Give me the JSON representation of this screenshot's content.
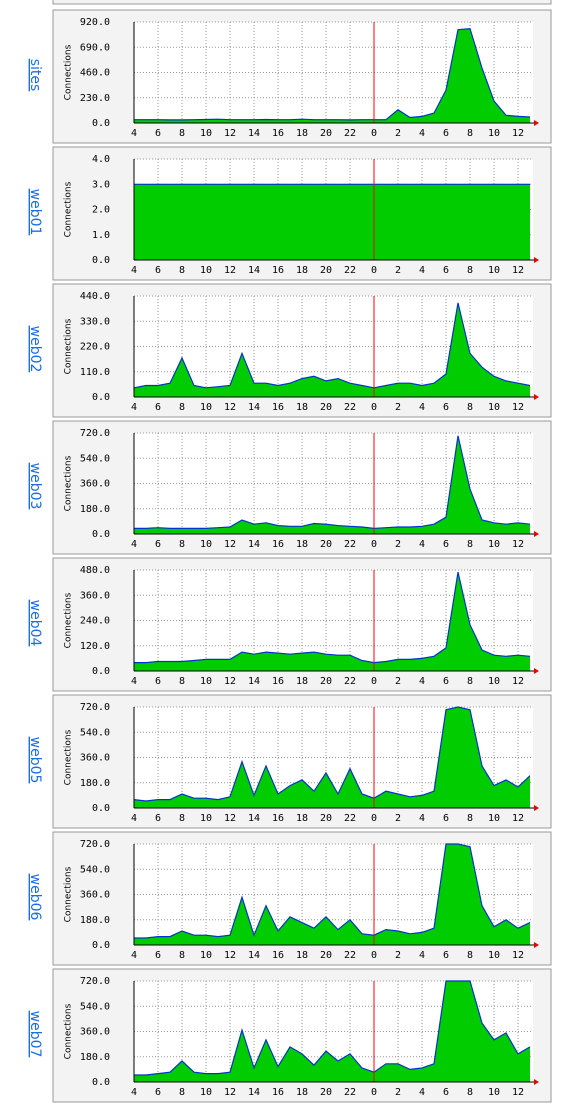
{
  "chart_data": [
    {
      "type": "area",
      "title": "sites",
      "ylabel": "Connections",
      "color": "#00cc00",
      "line_color": "#0033cc",
      "marker_x": 24,
      "marker_color": "#ff0000",
      "grid": true,
      "x": [
        4,
        5,
        6,
        7,
        8,
        9,
        10,
        11,
        12,
        13,
        14,
        15,
        16,
        17,
        18,
        19,
        20,
        21,
        22,
        23,
        24,
        25,
        26,
        27,
        28,
        29,
        30,
        31,
        32,
        33,
        34,
        35,
        36,
        37
      ],
      "values": [
        30,
        30,
        30,
        28,
        28,
        30,
        32,
        35,
        30,
        30,
        30,
        32,
        30,
        30,
        35,
        30,
        30,
        30,
        28,
        30,
        30,
        30,
        120,
        50,
        60,
        90,
        300,
        850,
        860,
        500,
        200,
        70,
        60,
        55
      ],
      "xlim": [
        4,
        37.25
      ],
      "xticks": [
        4,
        6,
        8,
        10,
        12,
        14,
        16,
        18,
        20,
        22,
        {
          "value": 24,
          "label": "0"
        },
        {
          "value": 26,
          "label": "2"
        },
        {
          "value": 28,
          "label": "4"
        },
        {
          "value": 30,
          "label": "6"
        },
        {
          "value": 32,
          "label": "8"
        },
        {
          "value": 34,
          "label": "10"
        },
        {
          "value": 36,
          "label": "12"
        }
      ],
      "ylim": [
        0,
        920
      ],
      "yticks": [
        {
          "value": 0,
          "label": "0.0"
        },
        {
          "value": 230,
          "label": "230.0"
        },
        {
          "value": 460,
          "label": "460.0"
        },
        {
          "value": 690,
          "label": "690.0"
        },
        {
          "value": 920,
          "label": "920.0"
        }
      ]
    },
    {
      "type": "area",
      "title": "web01",
      "ylabel": "Connections",
      "color": "#00cc00",
      "line_color": "#0033cc",
      "marker_x": 24,
      "marker_color": "#ff0000",
      "grid": true,
      "x": [
        4,
        5,
        6,
        7,
        8,
        9,
        10,
        11,
        12,
        13,
        14,
        15,
        16,
        17,
        18,
        19,
        20,
        21,
        22,
        23,
        24,
        25,
        26,
        27,
        28,
        29,
        30,
        31,
        32,
        33,
        34,
        35,
        36,
        37
      ],
      "values": [
        3,
        3,
        3,
        3,
        3,
        3,
        3,
        3,
        3,
        3,
        3,
        3,
        3,
        3,
        3,
        3,
        3,
        3,
        3,
        3,
        3,
        3,
        3,
        3,
        3,
        3,
        3,
        3,
        3,
        3,
        3,
        3,
        3,
        3
      ],
      "xlim": [
        4,
        37.25
      ],
      "xticks": [
        4,
        6,
        8,
        10,
        12,
        14,
        16,
        18,
        20,
        22,
        {
          "value": 24,
          "label": "0"
        },
        {
          "value": 26,
          "label": "2"
        },
        {
          "value": 28,
          "label": "4"
        },
        {
          "value": 30,
          "label": "6"
        },
        {
          "value": 32,
          "label": "8"
        },
        {
          "value": 34,
          "label": "10"
        },
        {
          "value": 36,
          "label": "12"
        }
      ],
      "ylim": [
        0,
        4
      ],
      "yticks": [
        {
          "value": 0,
          "label": "0.0"
        },
        {
          "value": 1,
          "label": "1.0"
        },
        {
          "value": 2,
          "label": "2.0"
        },
        {
          "value": 3,
          "label": "3.0"
        },
        {
          "value": 4,
          "label": "4.0"
        }
      ]
    },
    {
      "type": "area",
      "title": "web02",
      "ylabel": "Connections",
      "color": "#00cc00",
      "line_color": "#0033cc",
      "marker_x": 24,
      "marker_color": "#ff0000",
      "grid": true,
      "x": [
        4,
        5,
        6,
        7,
        8,
        9,
        10,
        11,
        12,
        13,
        14,
        15,
        16,
        17,
        18,
        19,
        20,
        21,
        22,
        23,
        24,
        25,
        26,
        27,
        28,
        29,
        30,
        31,
        32,
        33,
        34,
        35,
        36,
        37
      ],
      "values": [
        40,
        50,
        50,
        60,
        170,
        50,
        40,
        45,
        50,
        190,
        60,
        60,
        50,
        60,
        80,
        90,
        70,
        80,
        60,
        50,
        40,
        50,
        60,
        60,
        50,
        60,
        100,
        410,
        190,
        130,
        90,
        70,
        60,
        50
      ],
      "xlim": [
        4,
        37.25
      ],
      "xticks": [
        4,
        6,
        8,
        10,
        12,
        14,
        16,
        18,
        20,
        22,
        {
          "value": 24,
          "label": "0"
        },
        {
          "value": 26,
          "label": "2"
        },
        {
          "value": 28,
          "label": "4"
        },
        {
          "value": 30,
          "label": "6"
        },
        {
          "value": 32,
          "label": "8"
        },
        {
          "value": 34,
          "label": "10"
        },
        {
          "value": 36,
          "label": "12"
        }
      ],
      "ylim": [
        0,
        440
      ],
      "yticks": [
        {
          "value": 0,
          "label": "0.0"
        },
        {
          "value": 110,
          "label": "110.0"
        },
        {
          "value": 220,
          "label": "220.0"
        },
        {
          "value": 330,
          "label": "330.0"
        },
        {
          "value": 440,
          "label": "440.0"
        }
      ]
    },
    {
      "type": "area",
      "title": "web03",
      "ylabel": "Connections",
      "color": "#00cc00",
      "line_color": "#0033cc",
      "marker_x": 24,
      "marker_color": "#ff0000",
      "grid": true,
      "x": [
        4,
        5,
        6,
        7,
        8,
        9,
        10,
        11,
        12,
        13,
        14,
        15,
        16,
        17,
        18,
        19,
        20,
        21,
        22,
        23,
        24,
        25,
        26,
        27,
        28,
        29,
        30,
        31,
        32,
        33,
        34,
        35,
        36,
        37
      ],
      "values": [
        40,
        40,
        45,
        40,
        40,
        40,
        40,
        45,
        50,
        100,
        70,
        80,
        60,
        55,
        55,
        75,
        70,
        60,
        55,
        50,
        40,
        45,
        50,
        50,
        55,
        70,
        120,
        700,
        320,
        100,
        80,
        70,
        80,
        70
      ],
      "xlim": [
        4,
        37.25
      ],
      "xticks": [
        4,
        6,
        8,
        10,
        12,
        14,
        16,
        18,
        20,
        22,
        {
          "value": 24,
          "label": "0"
        },
        {
          "value": 26,
          "label": "2"
        },
        {
          "value": 28,
          "label": "4"
        },
        {
          "value": 30,
          "label": "6"
        },
        {
          "value": 32,
          "label": "8"
        },
        {
          "value": 34,
          "label": "10"
        },
        {
          "value": 36,
          "label": "12"
        }
      ],
      "ylim": [
        0,
        720
      ],
      "yticks": [
        {
          "value": 0,
          "label": "0.0"
        },
        {
          "value": 180,
          "label": "180.0"
        },
        {
          "value": 360,
          "label": "360.0"
        },
        {
          "value": 540,
          "label": "540.0"
        },
        {
          "value": 720,
          "label": "720.0"
        }
      ]
    },
    {
      "type": "area",
      "title": "web04",
      "ylabel": "Connections",
      "color": "#00cc00",
      "line_color": "#0033cc",
      "marker_x": 24,
      "marker_color": "#ff0000",
      "grid": true,
      "x": [
        4,
        5,
        6,
        7,
        8,
        9,
        10,
        11,
        12,
        13,
        14,
        15,
        16,
        17,
        18,
        19,
        20,
        21,
        22,
        23,
        24,
        25,
        26,
        27,
        28,
        29,
        30,
        31,
        32,
        33,
        34,
        35,
        36,
        37
      ],
      "values": [
        40,
        40,
        45,
        45,
        45,
        50,
        55,
        55,
        55,
        90,
        80,
        90,
        85,
        80,
        85,
        90,
        80,
        75,
        75,
        50,
        40,
        45,
        55,
        55,
        60,
        70,
        110,
        470,
        220,
        100,
        75,
        70,
        75,
        70
      ],
      "xlim": [
        4,
        37.25
      ],
      "xticks": [
        4,
        6,
        8,
        10,
        12,
        14,
        16,
        18,
        20,
        22,
        {
          "value": 24,
          "label": "0"
        },
        {
          "value": 26,
          "label": "2"
        },
        {
          "value": 28,
          "label": "4"
        },
        {
          "value": 30,
          "label": "6"
        },
        {
          "value": 32,
          "label": "8"
        },
        {
          "value": 34,
          "label": "10"
        },
        {
          "value": 36,
          "label": "12"
        }
      ],
      "ylim": [
        0,
        480
      ],
      "yticks": [
        {
          "value": 0,
          "label": "0.0"
        },
        {
          "value": 120,
          "label": "120.0"
        },
        {
          "value": 240,
          "label": "240.0"
        },
        {
          "value": 360,
          "label": "360.0"
        },
        {
          "value": 480,
          "label": "480.0"
        }
      ]
    },
    {
      "type": "area",
      "title": "web05",
      "ylabel": "Connections",
      "color": "#00cc00",
      "line_color": "#0033cc",
      "marker_x": 24,
      "marker_color": "#ff0000",
      "grid": true,
      "x": [
        4,
        5,
        6,
        7,
        8,
        9,
        10,
        11,
        12,
        13,
        14,
        15,
        16,
        17,
        18,
        19,
        20,
        21,
        22,
        23,
        24,
        25,
        26,
        27,
        28,
        29,
        30,
        31,
        32,
        33,
        34,
        35,
        36,
        37
      ],
      "values": [
        60,
        50,
        60,
        60,
        100,
        70,
        70,
        60,
        80,
        330,
        90,
        300,
        100,
        160,
        200,
        120,
        250,
        100,
        280,
        100,
        70,
        120,
        100,
        80,
        90,
        120,
        700,
        720,
        700,
        300,
        160,
        200,
        150,
        230
      ],
      "xlim": [
        4,
        37.25
      ],
      "xticks": [
        4,
        6,
        8,
        10,
        12,
        14,
        16,
        18,
        20,
        22,
        {
          "value": 24,
          "label": "0"
        },
        {
          "value": 26,
          "label": "2"
        },
        {
          "value": 28,
          "label": "4"
        },
        {
          "value": 30,
          "label": "6"
        },
        {
          "value": 32,
          "label": "8"
        },
        {
          "value": 34,
          "label": "10"
        },
        {
          "value": 36,
          "label": "12"
        }
      ],
      "ylim": [
        0,
        720
      ],
      "yticks": [
        {
          "value": 0,
          "label": "0.0"
        },
        {
          "value": 180,
          "label": "180.0"
        },
        {
          "value": 360,
          "label": "360.0"
        },
        {
          "value": 540,
          "label": "540.0"
        },
        {
          "value": 720,
          "label": "720.0"
        }
      ]
    },
    {
      "type": "area",
      "title": "web06",
      "ylabel": "Connections",
      "color": "#00cc00",
      "line_color": "#0033cc",
      "marker_x": 24,
      "marker_color": "#ff0000",
      "grid": true,
      "x": [
        4,
        5,
        6,
        7,
        8,
        9,
        10,
        11,
        12,
        13,
        14,
        15,
        16,
        17,
        18,
        19,
        20,
        21,
        22,
        23,
        24,
        25,
        26,
        27,
        28,
        29,
        30,
        31,
        32,
        33,
        34,
        35,
        36,
        37
      ],
      "values": [
        50,
        50,
        60,
        60,
        100,
        70,
        70,
        60,
        70,
        340,
        70,
        280,
        100,
        200,
        160,
        120,
        200,
        110,
        180,
        80,
        70,
        110,
        100,
        80,
        90,
        120,
        720,
        720,
        700,
        280,
        130,
        180,
        120,
        160
      ],
      "xlim": [
        4,
        37.25
      ],
      "xticks": [
        4,
        6,
        8,
        10,
        12,
        14,
        16,
        18,
        20,
        22,
        {
          "value": 24,
          "label": "0"
        },
        {
          "value": 26,
          "label": "2"
        },
        {
          "value": 28,
          "label": "4"
        },
        {
          "value": 30,
          "label": "6"
        },
        {
          "value": 32,
          "label": "8"
        },
        {
          "value": 34,
          "label": "10"
        },
        {
          "value": 36,
          "label": "12"
        }
      ],
      "ylim": [
        0,
        720
      ],
      "yticks": [
        {
          "value": 0,
          "label": "0.0"
        },
        {
          "value": 180,
          "label": "180.0"
        },
        {
          "value": 360,
          "label": "360.0"
        },
        {
          "value": 540,
          "label": "540.0"
        },
        {
          "value": 720,
          "label": "720.0"
        }
      ]
    },
    {
      "type": "area",
      "title": "web07",
      "ylabel": "Connections",
      "color": "#00cc00",
      "line_color": "#0033cc",
      "marker_x": 24,
      "marker_color": "#ff0000",
      "grid": true,
      "x": [
        4,
        5,
        6,
        7,
        8,
        9,
        10,
        11,
        12,
        13,
        14,
        15,
        16,
        17,
        18,
        19,
        20,
        21,
        22,
        23,
        24,
        25,
        26,
        27,
        28,
        29,
        30,
        31,
        32,
        33,
        34,
        35,
        36,
        37
      ],
      "values": [
        50,
        50,
        60,
        70,
        150,
        70,
        60,
        60,
        70,
        370,
        100,
        300,
        110,
        250,
        200,
        120,
        220,
        150,
        200,
        100,
        70,
        130,
        130,
        90,
        100,
        130,
        720,
        720,
        720,
        420,
        300,
        350,
        200,
        250
      ],
      "xlim": [
        4,
        37.25
      ],
      "xticks": [
        4,
        6,
        8,
        10,
        12,
        14,
        16,
        18,
        20,
        22,
        {
          "value": 24,
          "label": "0"
        },
        {
          "value": 26,
          "label": "2"
        },
        {
          "value": 28,
          "label": "4"
        },
        {
          "value": 30,
          "label": "6"
        },
        {
          "value": 32,
          "label": "8"
        },
        {
          "value": 34,
          "label": "10"
        },
        {
          "value": 36,
          "label": "12"
        }
      ],
      "ylim": [
        0,
        720
      ],
      "yticks": [
        {
          "value": 0,
          "label": "0.0"
        },
        {
          "value": 180,
          "label": "180.0"
        },
        {
          "value": 360,
          "label": "360.0"
        },
        {
          "value": 540,
          "label": "540.0"
        },
        {
          "value": 720,
          "label": "720.0"
        }
      ]
    }
  ]
}
